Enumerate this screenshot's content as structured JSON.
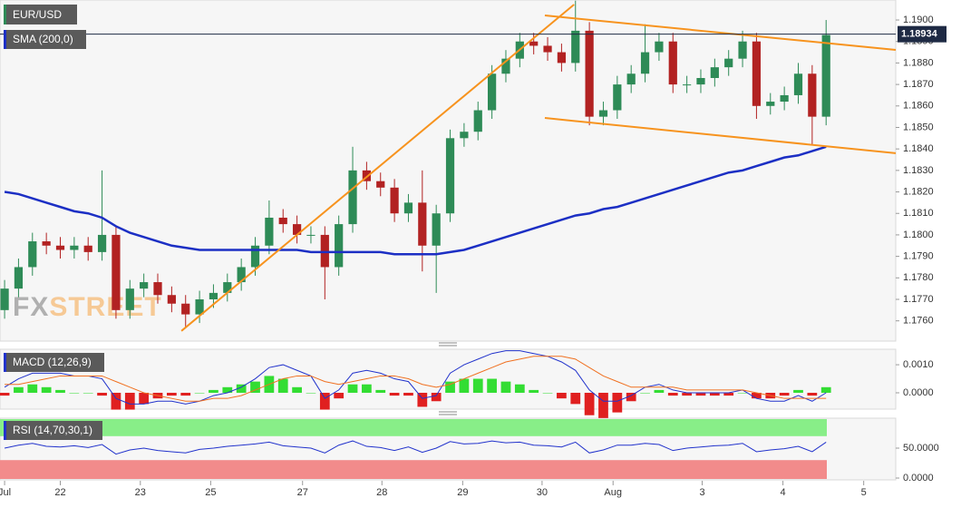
{
  "chart_data": [
    {
      "type": "candlestick",
      "title": "EUR/USD",
      "xlim": [
        -0.33,
        64
      ],
      "xticks": [
        {
          "value": 0,
          "label": "Jul"
        },
        {
          "value": 4,
          "label": "22"
        },
        {
          "value": 9.75,
          "label": "23"
        },
        {
          "value": 14.8,
          "label": "25"
        },
        {
          "value": 21.4,
          "label": "27"
        },
        {
          "value": 27.1,
          "label": "28"
        },
        {
          "value": 32.9,
          "label": "29"
        },
        {
          "value": 38.6,
          "label": "30"
        },
        {
          "value": 43.7,
          "label": "Aug"
        },
        {
          "value": 50.1,
          "label": "3"
        },
        {
          "value": 55.9,
          "label": "4"
        },
        {
          "value": 61.7,
          "label": "5"
        }
      ],
      "ylim": [
        1.1751,
        1.19093
      ],
      "yticks": [
        {
          "value": 1.19,
          "label": "1.1900"
        },
        {
          "value": 1.189,
          "label": "1.1890"
        },
        {
          "value": 1.188,
          "label": "1.1880"
        },
        {
          "value": 1.187,
          "label": "1.1870"
        },
        {
          "value": 1.186,
          "label": "1.1860"
        },
        {
          "value": 1.185,
          "label": "1.1850"
        },
        {
          "value": 1.184,
          "label": "1.1840"
        },
        {
          "value": 1.183,
          "label": "1.1830"
        },
        {
          "value": 1.182,
          "label": "1.1820"
        },
        {
          "value": 1.181,
          "label": "1.1810"
        },
        {
          "value": 1.18,
          "label": "1.1800"
        },
        {
          "value": 1.179,
          "label": "1.1790"
        },
        {
          "value": 1.178,
          "label": "1.1780"
        },
        {
          "value": 1.177,
          "label": "1.1770"
        },
        {
          "value": 1.176,
          "label": "1.1760"
        }
      ],
      "x": [
        0,
        1,
        2,
        3,
        4,
        5,
        6,
        7,
        8,
        9,
        10,
        11,
        12,
        13,
        14,
        15,
        16,
        17,
        18,
        19,
        20,
        21,
        22,
        23,
        24,
        25,
        26,
        27,
        28,
        29,
        30,
        31,
        32,
        33,
        34,
        35,
        36,
        37,
        38,
        39,
        40,
        41,
        42,
        43,
        44,
        45,
        46,
        47,
        48,
        49,
        50,
        51,
        52,
        53,
        54,
        55,
        56,
        57,
        58,
        59
      ],
      "open": [
        1.1765,
        1.1775,
        1.1785,
        1.1797,
        1.1795,
        1.1793,
        1.1795,
        1.1792,
        1.18,
        1.1765,
        1.1775,
        1.1778,
        1.1772,
        1.1768,
        1.1763,
        1.177,
        1.1773,
        1.1778,
        1.1785,
        1.1795,
        1.1808,
        1.1805,
        1.18,
        1.18,
        1.1785,
        1.1805,
        1.183,
        1.1825,
        1.1822,
        1.181,
        1.1815,
        1.1795,
        1.181,
        1.1845,
        1.1848,
        1.1858,
        1.1875,
        1.1882,
        1.189,
        1.1888,
        1.1885,
        1.188,
        1.1895,
        1.1855,
        1.1858,
        1.187,
        1.1875,
        1.1885,
        1.189,
        1.187,
        1.187,
        1.1873,
        1.1878,
        1.1882,
        1.189,
        1.186,
        1.1862,
        1.1865,
        1.1875,
        1.1855
      ],
      "high": [
        1.1779,
        1.1789,
        1.1801,
        1.1801,
        1.1799,
        1.1799,
        1.1799,
        1.183,
        1.1804,
        1.1779,
        1.1782,
        1.1782,
        1.1776,
        1.1772,
        1.1774,
        1.1777,
        1.1782,
        1.1789,
        1.1799,
        1.1816,
        1.1812,
        1.1809,
        1.1804,
        1.1804,
        1.1809,
        1.1841,
        1.1834,
        1.1829,
        1.1826,
        1.1819,
        1.183,
        1.1814,
        1.1849,
        1.1852,
        1.1862,
        1.1879,
        1.1886,
        1.1894,
        1.1894,
        1.1892,
        1.1889,
        1.1909,
        1.1899,
        1.1862,
        1.1874,
        1.1879,
        1.1898,
        1.1894,
        1.1894,
        1.1874,
        1.1877,
        1.1882,
        1.1886,
        1.1895,
        1.1894,
        1.1866,
        1.1869,
        1.188,
        1.1879,
        1.19
      ],
      "low": [
        1.1761,
        1.1771,
        1.1781,
        1.1791,
        1.1789,
        1.1789,
        1.1788,
        1.1788,
        1.1761,
        1.1761,
        1.1771,
        1.1768,
        1.1764,
        1.1757,
        1.1759,
        1.1766,
        1.1769,
        1.1774,
        1.1781,
        1.1791,
        1.1801,
        1.1796,
        1.1796,
        1.177,
        1.1781,
        1.1801,
        1.1821,
        1.1818,
        1.1806,
        1.1806,
        1.1783,
        1.1773,
        1.1806,
        1.1841,
        1.1844,
        1.1854,
        1.1871,
        1.1878,
        1.1884,
        1.1881,
        1.1876,
        1.1876,
        1.1851,
        1.1851,
        1.1854,
        1.1866,
        1.1871,
        1.1881,
        1.1866,
        1.1866,
        1.1866,
        1.1869,
        1.1874,
        1.1878,
        1.1854,
        1.1856,
        1.1858,
        1.1861,
        1.1842,
        1.1851
      ],
      "close": [
        1.1775,
        1.1785,
        1.1797,
        1.1795,
        1.1793,
        1.1795,
        1.1792,
        1.18,
        1.1765,
        1.1775,
        1.1778,
        1.1772,
        1.1768,
        1.1763,
        1.177,
        1.1773,
        1.1778,
        1.1785,
        1.1795,
        1.1808,
        1.1805,
        1.18,
        1.18,
        1.1785,
        1.1805,
        1.183,
        1.1825,
        1.1822,
        1.181,
        1.1815,
        1.1795,
        1.181,
        1.1845,
        1.1848,
        1.1858,
        1.1875,
        1.1882,
        1.189,
        1.1888,
        1.1885,
        1.188,
        1.1895,
        1.1855,
        1.1858,
        1.187,
        1.1875,
        1.1885,
        1.189,
        1.187,
        1.187,
        1.1873,
        1.1878,
        1.1882,
        1.189,
        1.186,
        1.1862,
        1.1865,
        1.1875,
        1.1855,
        1.1893
      ],
      "up_color": "#2e8b57",
      "down_color": "#b22222",
      "series": [
        {
          "name": "SMA (200,0)",
          "color": "#1c2fc4",
          "values": [
            1.182,
            1.1819,
            1.1817,
            1.1815,
            1.1813,
            1.1811,
            1.181,
            1.1808,
            1.1804,
            1.1801,
            1.1799,
            1.1797,
            1.1795,
            1.1794,
            1.1793,
            1.1793,
            1.1793,
            1.1793,
            1.1793,
            1.1793,
            1.1793,
            1.1793,
            1.1792,
            1.1792,
            1.1792,
            1.1792,
            1.1792,
            1.1792,
            1.1791,
            1.1791,
            1.1791,
            1.1791,
            1.1792,
            1.1793,
            1.1795,
            1.1797,
            1.1799,
            1.1801,
            1.1803,
            1.1805,
            1.1807,
            1.1809,
            1.181,
            1.1812,
            1.1813,
            1.1815,
            1.1817,
            1.1819,
            1.1821,
            1.1823,
            1.1825,
            1.1827,
            1.1829,
            1.183,
            1.1832,
            1.1834,
            1.1836,
            1.1837,
            1.1839,
            1.1841
          ]
        }
      ],
      "price_line": {
        "value": 1.18934,
        "label": "1.18934",
        "color": "#1e2a44"
      },
      "trendlines": [
        {
          "color": "#f7931e",
          "x": [
            12.7,
            40.9
          ],
          "y": [
            1.17553,
            1.19072
          ]
        },
        {
          "color": "#f7931e",
          "x": [
            38.8,
            64
          ],
          "y": [
            1.19021,
            1.18861
          ]
        },
        {
          "color": "#f7931e",
          "x": [
            38.8,
            64
          ],
          "y": [
            1.18544,
            1.1838
          ]
        }
      ],
      "watermark": [
        "FX",
        "STREET"
      ]
    },
    {
      "type": "macd",
      "title": "MACD (12,26,9)",
      "ylim": [
        -0.00055,
        0.00152
      ],
      "yticks": [
        {
          "value": 0.001,
          "label": "0.0010"
        },
        {
          "value": 0,
          "label": "0.0000"
        }
      ],
      "hist_up_color": "#33dd33",
      "hist_down_color": "#e02020",
      "histogram": [
        -0.0001,
        0.0002,
        0.0003,
        0.0002,
        0.0001,
        0,
        0,
        -0.0001,
        -0.0006,
        -0.0006,
        -0.0004,
        -0.0002,
        -0.0001,
        -0.0001,
        0,
        0.0001,
        0.0002,
        0.0003,
        0.0004,
        0.0006,
        0.0005,
        0.0002,
        0,
        -0.0006,
        -0.0002,
        0.0003,
        0.0003,
        0.0001,
        -0.0001,
        -0.0001,
        -0.0005,
        -0.0003,
        0.0004,
        0.0005,
        0.0005,
        0.0005,
        0.0004,
        0.0003,
        0.0001,
        0,
        -0.0002,
        -0.0004,
        -0.0008,
        -0.0009,
        -0.0007,
        -0.0003,
        0,
        0.0001,
        -0.0001,
        -0.0001,
        -0.0001,
        -0.0001,
        -0.0001,
        0,
        -0.0002,
        -0.0002,
        -0.0001,
        0.0001,
        -0.0001,
        0.0002
      ],
      "series": [
        {
          "color": "#2233cc",
          "values": [
            0.0002,
            0.0005,
            0.0007,
            0.0007,
            0.0007,
            0.0006,
            0.0006,
            0.0005,
            -0.0002,
            -0.0004,
            -0.0004,
            -0.0003,
            -0.0003,
            -0.0004,
            -0.0003,
            -0.0001,
            0,
            0.0002,
            0.0005,
            0.0009,
            0.001,
            0.0008,
            0.0006,
            -0.0002,
            0.0001,
            0.0007,
            0.0008,
            0.0007,
            0.0005,
            0.0004,
            -0.0002,
            -0.0001,
            0.0007,
            0.001,
            0.0012,
            0.0014,
            0.0015,
            0.0015,
            0.0014,
            0.0013,
            0.0011,
            0.0008,
            0.0001,
            -0.0003,
            -0.0003,
            -0.0001,
            0.0002,
            0.0003,
            0.0001,
            0,
            0,
            0,
            0,
            0.0001,
            -0.0002,
            -0.0003,
            -0.0003,
            -0.0001,
            -0.0003,
            0
          ]
        },
        {
          "color": "#f07020",
          "values": [
            0.0003,
            0.0003,
            0.0004,
            0.0005,
            0.0006,
            0.0006,
            0.0006,
            0.0006,
            0.0004,
            0.0002,
            0,
            -0.0001,
            -0.0002,
            -0.0003,
            -0.0003,
            -0.0002,
            -0.0002,
            -0.0001,
            0.0001,
            0.0003,
            0.0005,
            0.0006,
            0.0006,
            0.0004,
            0.0003,
            0.0004,
            0.0005,
            0.0006,
            0.0006,
            0.0005,
            0.0003,
            0.0002,
            0.0003,
            0.0005,
            0.0007,
            0.0009,
            0.0011,
            0.0012,
            0.0013,
            0.0013,
            0.0013,
            0.0012,
            0.0009,
            0.0006,
            0.0004,
            0.0002,
            0.0002,
            0.0002,
            0.0002,
            0.0001,
            0.0001,
            0.0001,
            0.0001,
            0.0001,
            0,
            -0.0001,
            -0.0002,
            -0.0002,
            -0.0002,
            -0.0002
          ]
        }
      ]
    },
    {
      "type": "rsi",
      "title": "RSI (14,70,30,1)",
      "ylim": [
        -1.5,
        98.5
      ],
      "yticks": [
        {
          "value": 50,
          "label": "50.0000"
        },
        {
          "value": 0,
          "label": "0.0000"
        }
      ],
      "overbought": 70,
      "oversold": 30,
      "overbought_color": "#88ee88",
      "oversold_color": "#f28b8b",
      "color": "#2233cc",
      "values": [
        50,
        55,
        58,
        53,
        52,
        54,
        51,
        56,
        40,
        47,
        50,
        46,
        44,
        42,
        48,
        50,
        53,
        55,
        57,
        60,
        54,
        52,
        50,
        42,
        55,
        62,
        53,
        51,
        46,
        52,
        43,
        50,
        61,
        57,
        58,
        62,
        59,
        60,
        55,
        54,
        52,
        60,
        42,
        47,
        55,
        55,
        58,
        56,
        46,
        50,
        52,
        54,
        55,
        58,
        44,
        47,
        49,
        53,
        44,
        60
      ]
    }
  ]
}
